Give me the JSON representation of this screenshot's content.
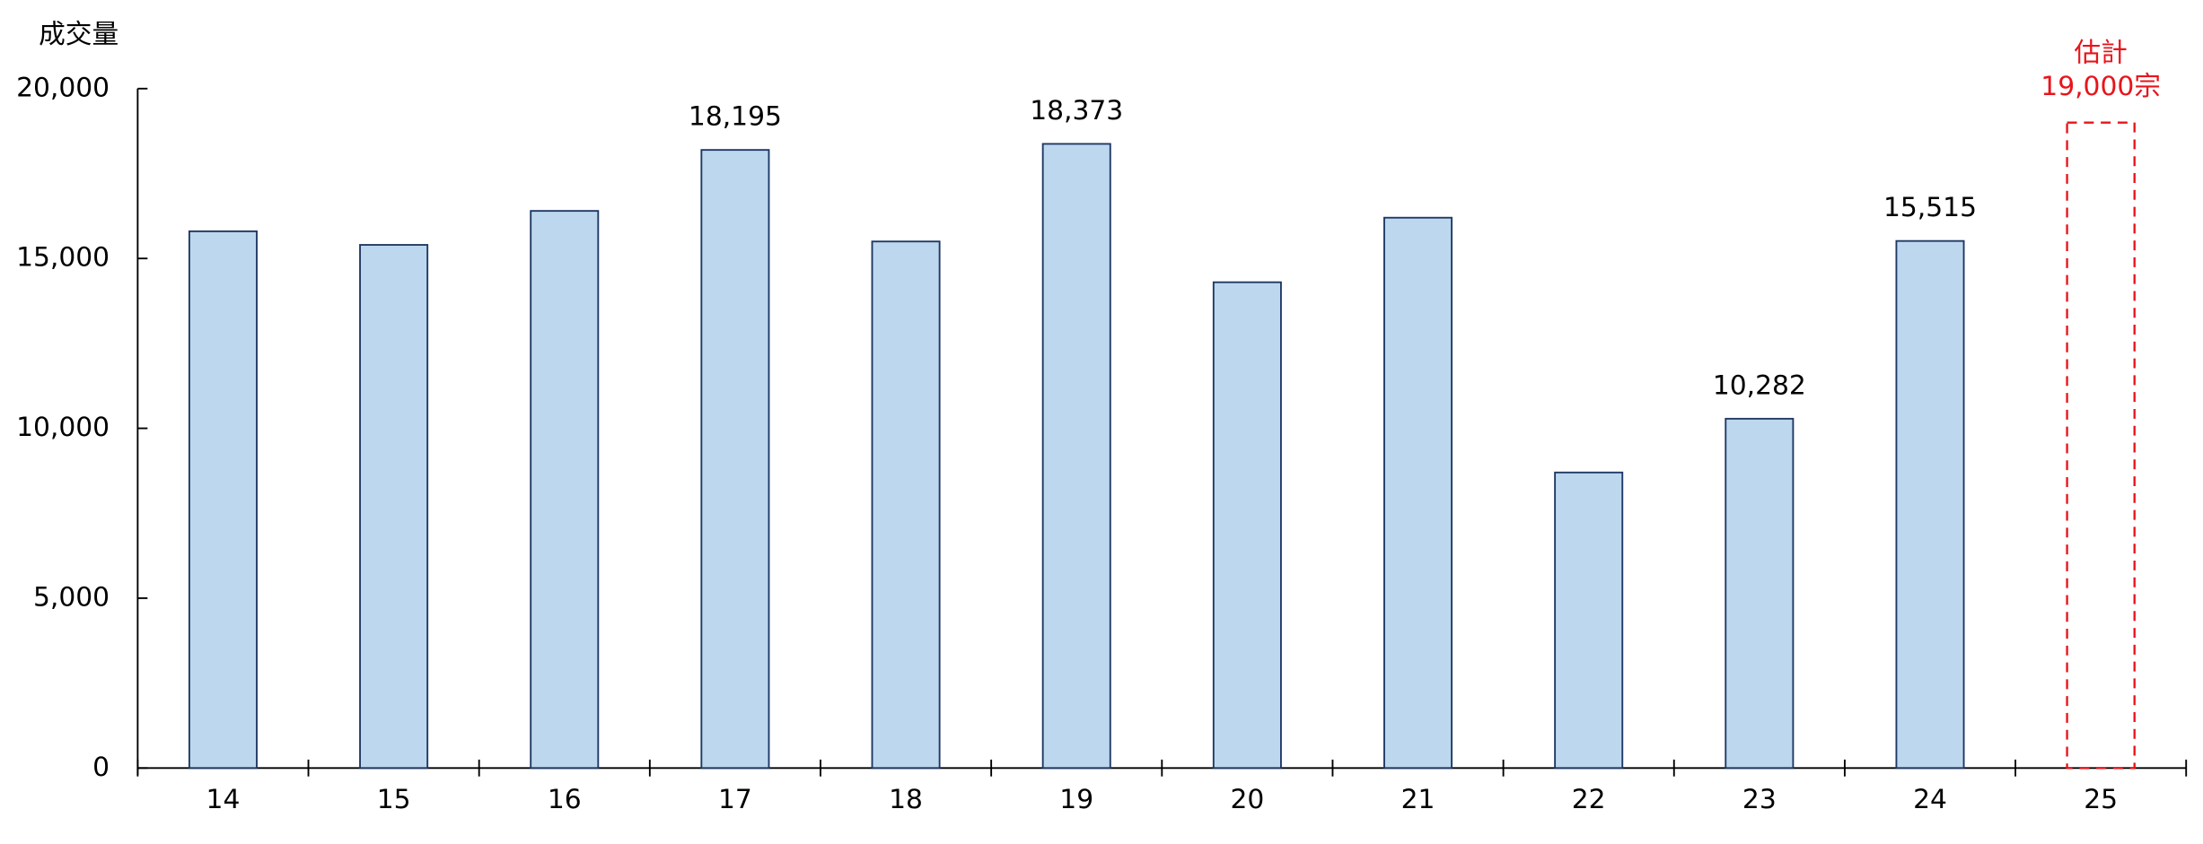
{
  "chart_data": {
    "type": "bar",
    "y_axis_label": "成交量",
    "categories": [
      "14",
      "15",
      "16",
      "17",
      "18",
      "19",
      "20",
      "21",
      "22",
      "23",
      "24",
      "25"
    ],
    "values": [
      15800,
      15400,
      16400,
      18195,
      15500,
      18373,
      14300,
      16200,
      8700,
      10282,
      15515,
      null
    ],
    "value_labels": [
      null,
      null,
      null,
      "18,195",
      null,
      "18,373",
      null,
      null,
      null,
      "10,282",
      "15,515",
      null
    ],
    "color": "#bdd7ee",
    "edge_color": "#1f3864",
    "estimate": {
      "text": "估計",
      "value": 19000,
      "value_label": "19,000宗",
      "color": "#e8141b"
    },
    "ylim": [
      0,
      20000
    ],
    "yticks": [
      0,
      {
        "value": 5000,
        "label": "5,000"
      },
      {
        "value": 10000,
        "label": "10,000"
      },
      {
        "value": 15000,
        "label": "15,000"
      },
      {
        "value": 20000,
        "label": "20,000"
      }
    ],
    "grid": false
  }
}
